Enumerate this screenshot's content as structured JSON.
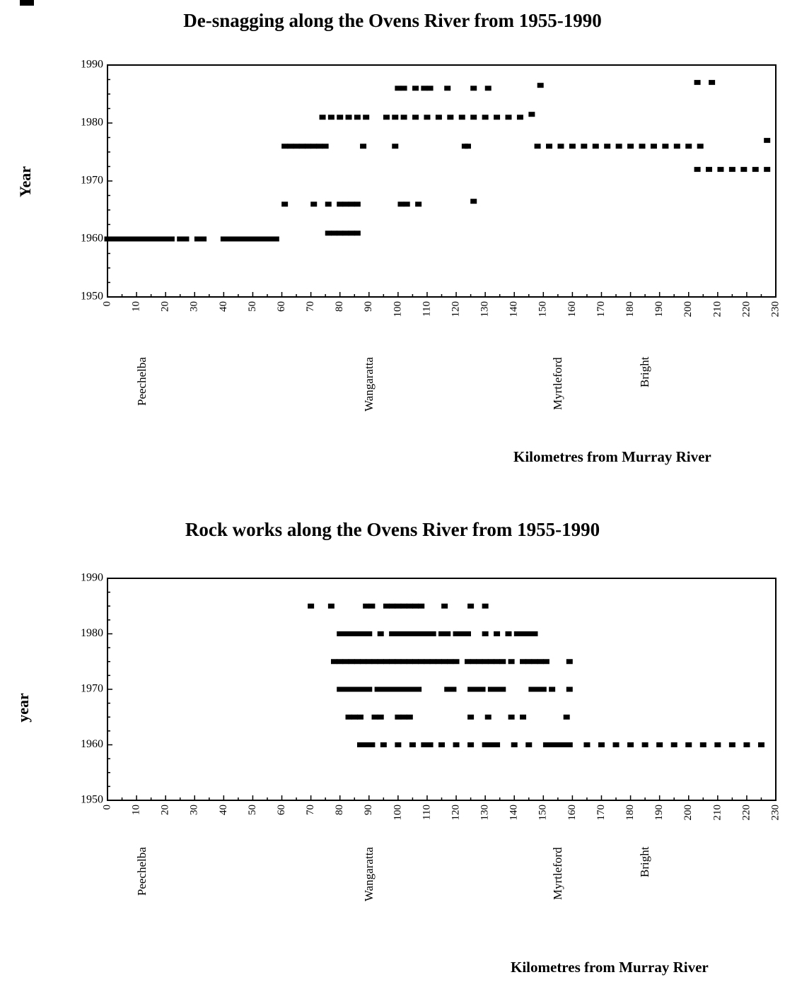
{
  "chart_data": [
    {
      "type": "scatter",
      "title": "De-snagging along the Ovens River from 1955-1990",
      "xlabel": "Kilometres from Murray River",
      "ylabel": "Year",
      "xlim": [
        0,
        230
      ],
      "ylim": [
        1950,
        1990
      ],
      "xticks": [
        0,
        10,
        20,
        30,
        40,
        50,
        60,
        70,
        80,
        90,
        100,
        110,
        120,
        130,
        140,
        150,
        160,
        170,
        180,
        190,
        200,
        210,
        220,
        230
      ],
      "yticks": [
        1950,
        1960,
        1970,
        1980,
        1990
      ],
      "grid": false,
      "towns": [
        {
          "name": "Peechelba",
          "km": 12
        },
        {
          "name": "Wangaratta",
          "km": 90
        },
        {
          "name": "Myrtleford",
          "km": 155
        },
        {
          "name": "Bright",
          "km": 185
        }
      ],
      "points": [
        [
          0,
          1960
        ],
        [
          2,
          1960
        ],
        [
          4,
          1960
        ],
        [
          6,
          1960
        ],
        [
          8,
          1960
        ],
        [
          10,
          1960
        ],
        [
          12,
          1960
        ],
        [
          14,
          1960
        ],
        [
          16,
          1960
        ],
        [
          18,
          1960
        ],
        [
          20,
          1960
        ],
        [
          22,
          1960
        ],
        [
          25,
          1960
        ],
        [
          27,
          1960
        ],
        [
          31,
          1960
        ],
        [
          33,
          1960
        ],
        [
          40,
          1960
        ],
        [
          42,
          1960
        ],
        [
          44,
          1960
        ],
        [
          46,
          1960
        ],
        [
          48,
          1960
        ],
        [
          50,
          1960
        ],
        [
          52,
          1960
        ],
        [
          54,
          1960
        ],
        [
          56,
          1960
        ],
        [
          58,
          1960
        ],
        [
          76,
          1961
        ],
        [
          78,
          1961
        ],
        [
          80,
          1961
        ],
        [
          82,
          1961
        ],
        [
          84,
          1961
        ],
        [
          86,
          1961
        ],
        [
          61,
          1966
        ],
        [
          71,
          1966
        ],
        [
          76,
          1966
        ],
        [
          80,
          1966
        ],
        [
          82,
          1966
        ],
        [
          84,
          1966
        ],
        [
          86,
          1966
        ],
        [
          101,
          1966
        ],
        [
          103,
          1966
        ],
        [
          107,
          1966
        ],
        [
          126,
          1966.5
        ],
        [
          61,
          1976
        ],
        [
          63,
          1976
        ],
        [
          65,
          1976
        ],
        [
          67,
          1976
        ],
        [
          69,
          1976
        ],
        [
          71,
          1976
        ],
        [
          73,
          1976
        ],
        [
          75,
          1976
        ],
        [
          88,
          1976
        ],
        [
          99,
          1976
        ],
        [
          123,
          1976
        ],
        [
          124,
          1976
        ],
        [
          148,
          1976
        ],
        [
          152,
          1976
        ],
        [
          156,
          1976
        ],
        [
          160,
          1976
        ],
        [
          164,
          1976
        ],
        [
          168,
          1976
        ],
        [
          172,
          1976
        ],
        [
          176,
          1976
        ],
        [
          180,
          1976
        ],
        [
          184,
          1976
        ],
        [
          188,
          1976
        ],
        [
          192,
          1976
        ],
        [
          196,
          1976
        ],
        [
          200,
          1976
        ],
        [
          204,
          1976
        ],
        [
          227,
          1977
        ],
        [
          74,
          1981
        ],
        [
          77,
          1981
        ],
        [
          80,
          1981
        ],
        [
          83,
          1981
        ],
        [
          86,
          1981
        ],
        [
          89,
          1981
        ],
        [
          96,
          1981
        ],
        [
          99,
          1981
        ],
        [
          102,
          1981
        ],
        [
          106,
          1981
        ],
        [
          110,
          1981
        ],
        [
          114,
          1981
        ],
        [
          118,
          1981
        ],
        [
          122,
          1981
        ],
        [
          126,
          1981
        ],
        [
          130,
          1981
        ],
        [
          134,
          1981
        ],
        [
          138,
          1981
        ],
        [
          142,
          1981
        ],
        [
          146,
          1981.5
        ],
        [
          100,
          1986
        ],
        [
          102,
          1986
        ],
        [
          106,
          1986
        ],
        [
          109,
          1986
        ],
        [
          111,
          1986
        ],
        [
          117,
          1986
        ],
        [
          126,
          1986
        ],
        [
          131,
          1986
        ],
        [
          149,
          1986.5
        ],
        [
          203,
          1987
        ],
        [
          208,
          1987
        ],
        [
          203,
          1972
        ],
        [
          207,
          1972
        ],
        [
          211,
          1972
        ],
        [
          215,
          1972
        ],
        [
          219,
          1972
        ],
        [
          223,
          1972
        ],
        [
          227,
          1972
        ]
      ]
    },
    {
      "type": "scatter",
      "title": "Rock works along the Ovens River from 1955-1990",
      "xlabel": "Kilometres from Murray River",
      "ylabel": "year",
      "xlim": [
        0,
        230
      ],
      "ylim": [
        1950,
        1990
      ],
      "xticks": [
        0,
        10,
        20,
        30,
        40,
        50,
        60,
        70,
        80,
        90,
        100,
        110,
        120,
        130,
        140,
        150,
        160,
        170,
        180,
        190,
        200,
        210,
        220,
        230
      ],
      "yticks": [
        1950,
        1960,
        1970,
        1980,
        1990
      ],
      "grid": false,
      "towns": [
        {
          "name": "Peechelba",
          "km": 12
        },
        {
          "name": "Wangaratta",
          "km": 90
        },
        {
          "name": "Myrtleford",
          "km": 155
        },
        {
          "name": "Bright",
          "km": 185
        }
      ],
      "points": [
        [
          70,
          1985
        ],
        [
          77,
          1985
        ],
        [
          89,
          1985
        ],
        [
          91,
          1985
        ],
        [
          96,
          1985
        ],
        [
          98,
          1985
        ],
        [
          100,
          1985
        ],
        [
          102,
          1985
        ],
        [
          104,
          1985
        ],
        [
          106,
          1985
        ],
        [
          108,
          1985
        ],
        [
          116,
          1985
        ],
        [
          125,
          1985
        ],
        [
          130,
          1985
        ],
        [
          80,
          1980
        ],
        [
          82,
          1980
        ],
        [
          84,
          1980
        ],
        [
          86,
          1980
        ],
        [
          88,
          1980
        ],
        [
          90,
          1980
        ],
        [
          94,
          1980
        ],
        [
          98,
          1980
        ],
        [
          100,
          1980
        ],
        [
          102,
          1980
        ],
        [
          104,
          1980
        ],
        [
          106,
          1980
        ],
        [
          108,
          1980
        ],
        [
          110,
          1980
        ],
        [
          112,
          1980
        ],
        [
          115,
          1980
        ],
        [
          117,
          1980
        ],
        [
          120,
          1980
        ],
        [
          122,
          1980
        ],
        [
          124,
          1980
        ],
        [
          130,
          1980
        ],
        [
          134,
          1980
        ],
        [
          138,
          1980
        ],
        [
          141,
          1980
        ],
        [
          143,
          1980
        ],
        [
          145,
          1980
        ],
        [
          147,
          1980
        ],
        [
          78,
          1975
        ],
        [
          80,
          1975
        ],
        [
          82,
          1975
        ],
        [
          84,
          1975
        ],
        [
          86,
          1975
        ],
        [
          88,
          1975
        ],
        [
          90,
          1975
        ],
        [
          92,
          1975
        ],
        [
          94,
          1975
        ],
        [
          96,
          1975
        ],
        [
          98,
          1975
        ],
        [
          100,
          1975
        ],
        [
          102,
          1975
        ],
        [
          104,
          1975
        ],
        [
          106,
          1975
        ],
        [
          108,
          1975
        ],
        [
          110,
          1975
        ],
        [
          112,
          1975
        ],
        [
          114,
          1975
        ],
        [
          116,
          1975
        ],
        [
          118,
          1975
        ],
        [
          120,
          1975
        ],
        [
          124,
          1975
        ],
        [
          126,
          1975
        ],
        [
          128,
          1975
        ],
        [
          130,
          1975
        ],
        [
          132,
          1975
        ],
        [
          134,
          1975
        ],
        [
          136,
          1975
        ],
        [
          139,
          1975
        ],
        [
          143,
          1975
        ],
        [
          145,
          1975
        ],
        [
          147,
          1975
        ],
        [
          149,
          1975
        ],
        [
          151,
          1975
        ],
        [
          159,
          1975
        ],
        [
          80,
          1970
        ],
        [
          82,
          1970
        ],
        [
          84,
          1970
        ],
        [
          86,
          1970
        ],
        [
          88,
          1970
        ],
        [
          90,
          1970
        ],
        [
          93,
          1970
        ],
        [
          95,
          1970
        ],
        [
          97,
          1970
        ],
        [
          99,
          1970
        ],
        [
          101,
          1970
        ],
        [
          103,
          1970
        ],
        [
          105,
          1970
        ],
        [
          107,
          1970
        ],
        [
          117,
          1970
        ],
        [
          119,
          1970
        ],
        [
          125,
          1970
        ],
        [
          127,
          1970
        ],
        [
          129,
          1970
        ],
        [
          132,
          1970
        ],
        [
          134,
          1970
        ],
        [
          136,
          1970
        ],
        [
          146,
          1970
        ],
        [
          148,
          1970
        ],
        [
          150,
          1970
        ],
        [
          153,
          1970
        ],
        [
          159,
          1970
        ],
        [
          83,
          1965
        ],
        [
          85,
          1965
        ],
        [
          87,
          1965
        ],
        [
          92,
          1965
        ],
        [
          94,
          1965
        ],
        [
          100,
          1965
        ],
        [
          102,
          1965
        ],
        [
          104,
          1965
        ],
        [
          125,
          1965
        ],
        [
          131,
          1965
        ],
        [
          139,
          1965
        ],
        [
          143,
          1965
        ],
        [
          158,
          1965
        ],
        [
          87,
          1960
        ],
        [
          89,
          1960
        ],
        [
          91,
          1960
        ],
        [
          95,
          1960
        ],
        [
          100,
          1960
        ],
        [
          105,
          1960
        ],
        [
          109,
          1960
        ],
        [
          111,
          1960
        ],
        [
          115,
          1960
        ],
        [
          120,
          1960
        ],
        [
          125,
          1960
        ],
        [
          130,
          1960
        ],
        [
          132,
          1960
        ],
        [
          134,
          1960
        ],
        [
          140,
          1960
        ],
        [
          145,
          1960
        ],
        [
          151,
          1960
        ],
        [
          153,
          1960
        ],
        [
          155,
          1960
        ],
        [
          157,
          1960
        ],
        [
          159,
          1960
        ],
        [
          165,
          1960
        ],
        [
          170,
          1960
        ],
        [
          175,
          1960
        ],
        [
          180,
          1960
        ],
        [
          185,
          1960
        ],
        [
          190,
          1960
        ],
        [
          195,
          1960
        ],
        [
          200,
          1960
        ],
        [
          205,
          1960
        ],
        [
          210,
          1960
        ],
        [
          215,
          1960
        ],
        [
          220,
          1960
        ],
        [
          225,
          1960
        ]
      ]
    }
  ]
}
